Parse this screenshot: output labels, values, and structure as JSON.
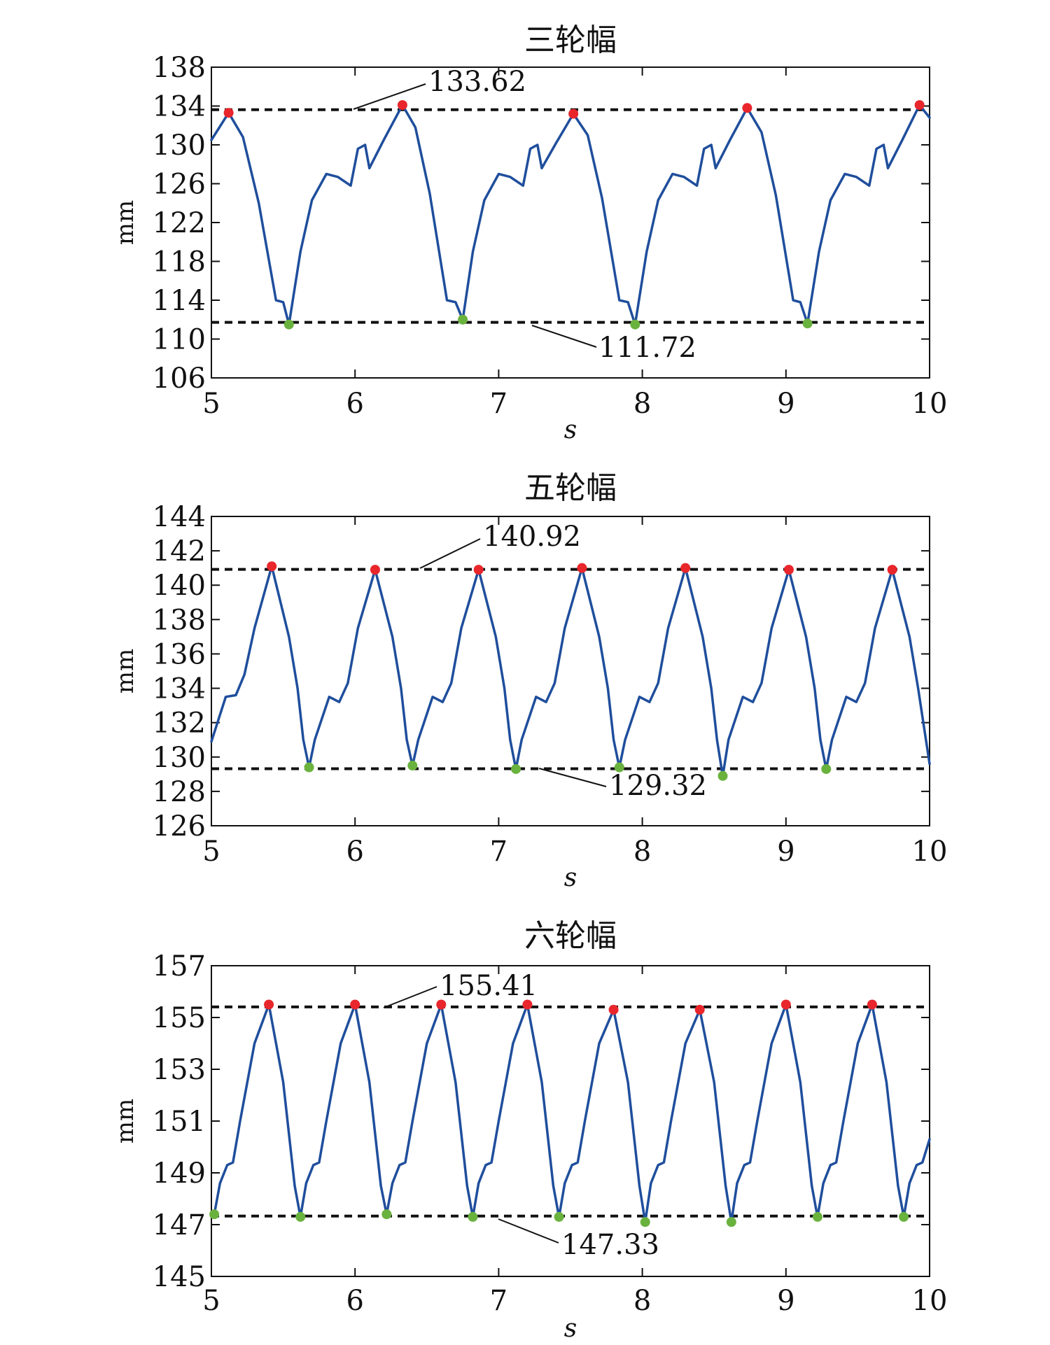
{
  "chart_data": [
    {
      "type": "line",
      "title": "三轮幅",
      "xlabel": "s",
      "ylabel": "mm",
      "xlim": [
        5,
        10
      ],
      "ylim": [
        106,
        138
      ],
      "xticks": [
        5,
        6,
        7,
        8,
        9,
        10
      ],
      "yticks": [
        106,
        110,
        114,
        118,
        122,
        126,
        130,
        134,
        138
      ],
      "line_color": "#1f4e9c",
      "max_color": "#e8262b",
      "min_color": "#6ab23e",
      "upper_ref": 133.62,
      "lower_ref": 111.72,
      "upper_label": "133.62",
      "lower_label": "111.72",
      "maxima": [
        [
          5.12,
          133.3
        ],
        [
          6.33,
          134.1
        ],
        [
          7.52,
          133.2
        ],
        [
          8.73,
          133.8
        ],
        [
          9.93,
          134.1
        ]
      ],
      "minima": [
        [
          5.54,
          111.5
        ],
        [
          6.75,
          112.0
        ],
        [
          7.95,
          111.5
        ],
        [
          9.15,
          111.6
        ]
      ],
      "series": [
        {
          "x": [
            5.0,
            5.12,
            5.22,
            5.33,
            5.45,
            5.5,
            5.54,
            5.62,
            5.7,
            5.8,
            5.88,
            5.97,
            6.02,
            6.07,
            6.1,
            6.2,
            6.33,
            6.42,
            6.52,
            6.64,
            6.7,
            6.75,
            6.82,
            6.9,
            7.0,
            7.08,
            7.17,
            7.22,
            7.27,
            7.3,
            7.4,
            7.52,
            7.62,
            7.72,
            7.84,
            7.9,
            7.95,
            8.03,
            8.11,
            8.21,
            8.29,
            8.38,
            8.43,
            8.48,
            8.51,
            8.61,
            8.73,
            8.83,
            8.93,
            9.05,
            9.1,
            9.15,
            9.23,
            9.31,
            9.41,
            9.49,
            9.58,
            9.63,
            9.68,
            9.71,
            9.81,
            9.93,
            10.0
          ],
          "y": [
            130.5,
            133.3,
            130.8,
            124.0,
            114.0,
            113.8,
            111.5,
            119.0,
            124.3,
            127.0,
            126.7,
            125.8,
            129.6,
            130.0,
            127.6,
            130.5,
            134.1,
            131.8,
            125.0,
            114.0,
            113.8,
            112.0,
            119.0,
            124.3,
            127.0,
            126.7,
            125.8,
            129.6,
            130.0,
            127.6,
            130.2,
            133.2,
            131.0,
            124.5,
            114.0,
            113.8,
            111.5,
            119.0,
            124.3,
            127.0,
            126.7,
            125.8,
            129.6,
            130.0,
            127.6,
            130.5,
            133.8,
            131.3,
            124.8,
            114.0,
            113.8,
            111.6,
            119.0,
            124.3,
            127.0,
            126.7,
            125.8,
            129.6,
            130.0,
            127.6,
            130.5,
            134.1,
            132.8
          ]
        }
      ]
    },
    {
      "type": "line",
      "title": "五轮幅",
      "xlabel": "s",
      "ylabel": "mm",
      "xlim": [
        5,
        10
      ],
      "ylim": [
        126,
        144
      ],
      "xticks": [
        5,
        6,
        7,
        8,
        9,
        10
      ],
      "yticks": [
        126,
        128,
        130,
        132,
        134,
        136,
        138,
        140,
        142,
        144
      ],
      "line_color": "#1f4e9c",
      "max_color": "#e8262b",
      "min_color": "#6ab23e",
      "upper_ref": 140.92,
      "lower_ref": 129.32,
      "upper_label": "140.92",
      "lower_label": "129.32",
      "maxima": [
        [
          5.42,
          141.1
        ],
        [
          6.14,
          140.9
        ],
        [
          6.86,
          140.9
        ],
        [
          7.58,
          141.0
        ],
        [
          8.3,
          141.0
        ],
        [
          9.02,
          140.9
        ],
        [
          9.74,
          140.9
        ]
      ],
      "minima": [
        [
          5.68,
          129.4
        ],
        [
          6.4,
          129.5
        ],
        [
          7.12,
          129.3
        ],
        [
          7.84,
          129.4
        ],
        [
          8.56,
          128.9
        ],
        [
          9.28,
          129.3
        ]
      ],
      "series": [
        {
          "x": [
            5.0,
            5.1,
            5.17,
            5.23,
            5.3,
            5.42,
            5.54,
            5.6,
            5.64,
            5.68,
            5.72,
            5.82,
            5.89,
            5.95,
            6.02,
            6.14,
            6.26,
            6.32,
            6.36,
            6.4,
            6.44,
            6.54,
            6.61,
            6.67,
            6.74,
            6.86,
            6.98,
            7.04,
            7.08,
            7.12,
            7.16,
            7.26,
            7.33,
            7.39,
            7.46,
            7.58,
            7.7,
            7.76,
            7.8,
            7.84,
            7.88,
            7.98,
            8.05,
            8.11,
            8.18,
            8.3,
            8.42,
            8.48,
            8.52,
            8.56,
            8.6,
            8.7,
            8.77,
            8.83,
            8.9,
            9.02,
            9.14,
            9.2,
            9.24,
            9.28,
            9.32,
            9.42,
            9.49,
            9.55,
            9.62,
            9.74,
            9.86,
            9.92,
            10.0
          ],
          "y": [
            130.9,
            133.5,
            133.6,
            134.8,
            137.5,
            141.1,
            137.0,
            134.0,
            131.0,
            129.4,
            131.0,
            133.5,
            133.2,
            134.3,
            137.5,
            140.9,
            137.0,
            134.0,
            131.0,
            129.5,
            131.0,
            133.5,
            133.2,
            134.3,
            137.5,
            140.9,
            137.0,
            134.0,
            131.0,
            129.3,
            131.0,
            133.5,
            133.2,
            134.3,
            137.5,
            141.0,
            137.0,
            134.0,
            131.0,
            129.4,
            131.0,
            133.5,
            133.2,
            134.3,
            137.5,
            141.0,
            137.0,
            134.0,
            131.0,
            128.9,
            131.0,
            133.5,
            133.2,
            134.3,
            137.5,
            140.9,
            137.0,
            134.0,
            131.0,
            129.3,
            131.0,
            133.5,
            133.2,
            134.3,
            137.5,
            140.9,
            137.0,
            134.0,
            129.6
          ]
        }
      ]
    },
    {
      "type": "line",
      "title": "六轮幅",
      "xlabel": "s",
      "ylabel": "mm",
      "xlim": [
        5,
        10
      ],
      "ylim": [
        145,
        157
      ],
      "xticks": [
        5,
        6,
        7,
        8,
        9,
        10
      ],
      "yticks": [
        145,
        147,
        149,
        151,
        153,
        155,
        157
      ],
      "line_color": "#1f4e9c",
      "max_color": "#e8262b",
      "min_color": "#6ab23e",
      "upper_ref": 155.41,
      "lower_ref": 147.33,
      "upper_label": "155.41",
      "lower_label": "147.33",
      "maxima": [
        [
          5.4,
          155.5
        ],
        [
          6.0,
          155.5
        ],
        [
          6.6,
          155.5
        ],
        [
          7.2,
          155.5
        ],
        [
          7.8,
          155.3
        ],
        [
          8.4,
          155.3
        ],
        [
          9.0,
          155.5
        ],
        [
          9.6,
          155.5
        ]
      ],
      "minima": [
        [
          5.02,
          147.4
        ],
        [
          5.62,
          147.3
        ],
        [
          6.22,
          147.4
        ],
        [
          6.82,
          147.3
        ],
        [
          7.42,
          147.3
        ],
        [
          8.02,
          147.1
        ],
        [
          8.62,
          147.1
        ],
        [
          9.22,
          147.3
        ],
        [
          9.82,
          147.3
        ]
      ],
      "series": [
        {
          "x": [
            5.0,
            5.02,
            5.06,
            5.11,
            5.15,
            5.2,
            5.3,
            5.4,
            5.5,
            5.58,
            5.62,
            5.66,
            5.71,
            5.75,
            5.8,
            5.9,
            6.0,
            6.1,
            6.18,
            6.22,
            6.26,
            6.31,
            6.35,
            6.4,
            6.5,
            6.6,
            6.7,
            6.78,
            6.82,
            6.86,
            6.91,
            6.95,
            7.0,
            7.1,
            7.2,
            7.3,
            7.38,
            7.42,
            7.46,
            7.51,
            7.55,
            7.6,
            7.7,
            7.8,
            7.9,
            7.98,
            8.02,
            8.06,
            8.11,
            8.15,
            8.2,
            8.3,
            8.4,
            8.5,
            8.58,
            8.62,
            8.66,
            8.71,
            8.75,
            8.8,
            8.9,
            9.0,
            9.1,
            9.18,
            9.22,
            9.26,
            9.31,
            9.35,
            9.4,
            9.5,
            9.6,
            9.7,
            9.78,
            9.82,
            9.86,
            9.91,
            9.95,
            10.0
          ],
          "y": [
            147.3,
            147.4,
            148.6,
            149.3,
            149.4,
            151.0,
            154.0,
            155.5,
            152.5,
            148.5,
            147.3,
            148.6,
            149.3,
            149.4,
            151.0,
            154.0,
            155.5,
            152.5,
            148.5,
            147.4,
            148.6,
            149.3,
            149.4,
            151.0,
            154.0,
            155.5,
            152.5,
            148.5,
            147.3,
            148.6,
            149.3,
            149.4,
            151.0,
            154.0,
            155.5,
            152.5,
            148.5,
            147.3,
            148.6,
            149.3,
            149.4,
            151.0,
            154.0,
            155.3,
            152.5,
            148.5,
            147.1,
            148.6,
            149.3,
            149.4,
            151.0,
            154.0,
            155.3,
            152.5,
            148.5,
            147.1,
            148.6,
            149.3,
            149.4,
            151.0,
            154.0,
            155.5,
            152.5,
            148.5,
            147.3,
            148.6,
            149.3,
            149.4,
            151.0,
            154.0,
            155.5,
            152.5,
            148.5,
            147.3,
            148.6,
            149.3,
            149.4,
            150.3
          ]
        }
      ]
    }
  ]
}
